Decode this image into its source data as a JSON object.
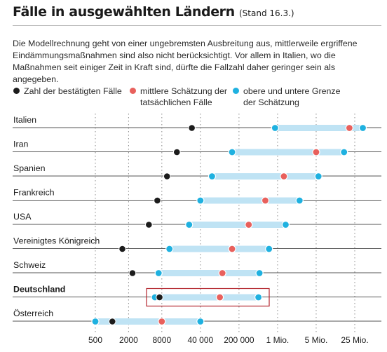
{
  "header": {
    "title": "Fälle in ausgewählten Ländern",
    "stand": "(Stand 16.3.)",
    "description": "Die Modellrechnung geht von einer ungebremsten Ausbreitung aus, mittlerweile ergriffene Eindämmungsmaßnahmen sind also nicht berücksichtigt. Vor allem in Italien, wo die Maßnahmen seit einiger Zeit in Kraft sind, dürfte die Fallzahl daher geringer sein als angegeben."
  },
  "legend": {
    "confirmed_line1": "Zahl der bestätigten Fälle",
    "estimate_line1": "mittlere Schätzung der",
    "estimate_line2": "tatsächlichen Fälle",
    "bounds_line1": "obere und untere Grenze",
    "bounds_line2": "der Schätzung"
  },
  "colors": {
    "confirmed": "#1c1c1c",
    "estimate": "#e8605c",
    "bounds_dot": "#1fb1e0",
    "bounds_bar": "#bfe3f4",
    "highlight_box": "#b3262e",
    "grid": "#8a8a8a"
  },
  "chart_data": {
    "type": "range-dot",
    "x_scale": "log",
    "xlim": [
      300,
      40000000
    ],
    "x_ticks": [
      {
        "value": 500,
        "label": "500"
      },
      {
        "value": 2000,
        "label": "2000"
      },
      {
        "value": 8000,
        "label": "8000"
      },
      {
        "value": 40000,
        "label": "40 000"
      },
      {
        "value": 200000,
        "label": "200 000"
      },
      {
        "value": 1000000,
        "label": "1 Mio."
      },
      {
        "value": 5000000,
        "label": "5 Mio."
      },
      {
        "value": 25000000,
        "label": "25 Mio."
      }
    ],
    "highlight": "Deutschland",
    "countries": [
      {
        "name": "Italien",
        "confirmed": 27980,
        "lower": 900000,
        "estimate": 20000000,
        "upper": 35000000
      },
      {
        "name": "Iran",
        "confirmed": 14991,
        "lower": 150000,
        "estimate": 5000000,
        "upper": 16000000
      },
      {
        "name": "Spanien",
        "confirmed": 9942,
        "lower": 65000,
        "estimate": 1300000,
        "upper": 5500000
      },
      {
        "name": "Frankreich",
        "confirmed": 6633,
        "lower": 40000,
        "estimate": 600000,
        "upper": 2500000
      },
      {
        "name": "USA",
        "confirmed": 4661,
        "lower": 25000,
        "estimate": 300000,
        "upper": 1400000
      },
      {
        "name": "Vereinigtes Königreich",
        "confirmed": 1543,
        "lower": 11000,
        "estimate": 150000,
        "upper": 700000
      },
      {
        "name": "Schweiz",
        "confirmed": 2353,
        "lower": 7000,
        "estimate": 100000,
        "upper": 470000
      },
      {
        "name": "Deutschland",
        "confirmed": 7272,
        "lower": 6000,
        "estimate": 90000,
        "upper": 450000
      },
      {
        "name": "Österreich",
        "confirmed": 1016,
        "lower": 500,
        "estimate": 8000,
        "upper": 40000
      }
    ]
  }
}
